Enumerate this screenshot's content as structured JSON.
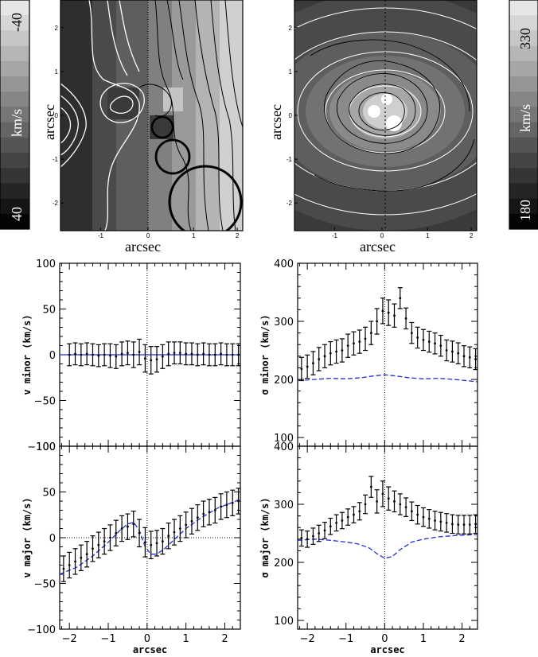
{
  "maps": {
    "left": {
      "xlabel": "arcsec",
      "ylabel": "arcsec",
      "xticks": [
        "-1",
        "0",
        "1",
        "2"
      ],
      "yticks": [
        "2",
        "1",
        "0",
        "-1",
        "-2"
      ]
    },
    "right": {
      "xlabel": "arcsec",
      "ylabel": "arcsec",
      "xticks": [
        "-1",
        "0",
        "1",
        "2"
      ],
      "yticks": [
        "2",
        "1",
        "0",
        "-1",
        "-2"
      ]
    }
  },
  "colorbars": {
    "left": {
      "top": "-40",
      "bottom": "40",
      "unit": "km/s",
      "levels": 15
    },
    "right": {
      "top": "330",
      "bottom": "180",
      "unit": "km/s",
      "levels": 15
    }
  },
  "chart_data": [
    {
      "type": "scatter",
      "name": "v-minor",
      "ylabel": "v  minor  (km/s)",
      "xlabel": "",
      "xlim": [
        -2.25,
        2.4
      ],
      "ylim": [
        -100,
        100
      ],
      "yticks": [
        -100,
        -50,
        0,
        50,
        100
      ],
      "x": [
        -2.0,
        -1.85,
        -1.7,
        -1.55,
        -1.4,
        -1.25,
        -1.1,
        -0.95,
        -0.8,
        -0.65,
        -0.5,
        -0.35,
        -0.2,
        -0.05,
        0.1,
        0.25,
        0.4,
        0.55,
        0.7,
        0.85,
        1.0,
        1.15,
        1.3,
        1.45,
        1.6,
        1.75,
        1.9,
        2.05,
        2.2,
        2.35
      ],
      "y": [
        0,
        1,
        0,
        1,
        0,
        -1,
        0,
        -1,
        -2,
        1,
        2,
        0,
        3,
        -4,
        -6,
        -5,
        -2,
        1,
        2,
        2,
        1,
        1,
        0,
        1,
        0,
        0,
        1,
        0,
        0,
        0
      ],
      "err": [
        12,
        12,
        12,
        12,
        12,
        12,
        12,
        13,
        13,
        13,
        13,
        14,
        14,
        15,
        15,
        14,
        13,
        13,
        12,
        12,
        12,
        12,
        12,
        12,
        12,
        12,
        12,
        12,
        12,
        12
      ],
      "model": {
        "x": [
          -2.25,
          2.4
        ],
        "y": [
          0,
          0
        ]
      }
    },
    {
      "type": "scatter",
      "name": "sigma-minor",
      "ylabel": "σ  minor  (km/s)",
      "xlabel": "",
      "xlim": [
        -2.25,
        2.4
      ],
      "ylim": [
        85,
        400
      ],
      "yticks": [
        100,
        200,
        300,
        400
      ],
      "x": [
        -2.15,
        -2.0,
        -1.85,
        -1.7,
        -1.55,
        -1.4,
        -1.25,
        -1.1,
        -0.95,
        -0.8,
        -0.65,
        -0.5,
        -0.35,
        -0.2,
        -0.05,
        0.1,
        0.25,
        0.4,
        0.55,
        0.7,
        0.85,
        1.0,
        1.15,
        1.3,
        1.45,
        1.6,
        1.75,
        1.9,
        2.05,
        2.2,
        2.35
      ],
      "y": [
        218,
        222,
        228,
        235,
        240,
        245,
        248,
        250,
        258,
        262,
        265,
        270,
        280,
        300,
        318,
        315,
        310,
        340,
        305,
        280,
        272,
        268,
        265,
        262,
        258,
        250,
        248,
        245,
        240,
        238,
        235
      ],
      "err": [
        20,
        20,
        20,
        20,
        20,
        20,
        20,
        20,
        20,
        20,
        20,
        20,
        20,
        22,
        22,
        22,
        20,
        18,
        18,
        18,
        18,
        18,
        18,
        18,
        18,
        18,
        18,
        18,
        18,
        18,
        18
      ],
      "model": {
        "x": [
          -2.25,
          -1.8,
          -1.4,
          -1.0,
          -0.6,
          -0.3,
          0.0,
          0.3,
          0.6,
          1.0,
          1.4,
          1.8,
          2.4
        ],
        "y": [
          198,
          200,
          202,
          201,
          203,
          206,
          208,
          206,
          203,
          201,
          202,
          200,
          196
        ]
      }
    },
    {
      "type": "scatter",
      "name": "v-major",
      "ylabel": "v  major  (km/s)",
      "xlabel": "arcsec",
      "xlim": [
        -2.25,
        2.4
      ],
      "ylim": [
        -100,
        100
      ],
      "yticks": [
        -100,
        -50,
        0,
        50,
        100
      ],
      "xticks": [
        -2,
        -1,
        0,
        1,
        2
      ],
      "x": [
        -2.15,
        -2.0,
        -1.85,
        -1.7,
        -1.55,
        -1.4,
        -1.25,
        -1.1,
        -0.95,
        -0.8,
        -0.65,
        -0.5,
        -0.35,
        -0.2,
        -0.05,
        0.1,
        0.25,
        0.4,
        0.55,
        0.7,
        0.85,
        1.0,
        1.15,
        1.3,
        1.45,
        1.6,
        1.75,
        1.9,
        2.05,
        2.2,
        2.35
      ],
      "y": [
        -34,
        -30,
        -26,
        -22,
        -18,
        -12,
        -8,
        -4,
        0,
        5,
        10,
        12,
        15,
        5,
        -5,
        -8,
        -6,
        -4,
        2,
        6,
        10,
        14,
        18,
        22,
        26,
        28,
        30,
        34,
        36,
        38,
        40
      ],
      "err": [
        14,
        14,
        14,
        14,
        14,
        14,
        14,
        14,
        14,
        14,
        14,
        14,
        14,
        15,
        16,
        15,
        14,
        14,
        14,
        14,
        14,
        14,
        14,
        14,
        14,
        14,
        14,
        14,
        14,
        14,
        14
      ],
      "model": {
        "x": [
          -2.25,
          -1.8,
          -1.4,
          -1.0,
          -0.7,
          -0.5,
          -0.35,
          -0.2,
          -0.05,
          0.1,
          0.25,
          0.45,
          0.7,
          1.0,
          1.4,
          1.8,
          2.4
        ],
        "y": [
          -40,
          -32,
          -20,
          -5,
          8,
          15,
          17,
          8,
          -10,
          -18,
          -18,
          -12,
          -2,
          10,
          22,
          32,
          42
        ]
      }
    },
    {
      "type": "scatter",
      "name": "sigma-major",
      "ylabel": "σ  major  (km/s)",
      "xlabel": "arcsec",
      "xlim": [
        -2.25,
        2.4
      ],
      "ylim": [
        85,
        400
      ],
      "yticks": [
        100,
        200,
        300,
        400
      ],
      "xticks": [
        -2,
        -1,
        0,
        1,
        2
      ],
      "x": [
        -2.15,
        -2.0,
        -1.85,
        -1.7,
        -1.55,
        -1.4,
        -1.25,
        -1.1,
        -0.95,
        -0.8,
        -0.65,
        -0.5,
        -0.35,
        -0.2,
        -0.05,
        0.1,
        0.25,
        0.4,
        0.55,
        0.7,
        0.85,
        1.0,
        1.15,
        1.3,
        1.45,
        1.6,
        1.75,
        1.9,
        2.05,
        2.2,
        2.35
      ],
      "y": [
        242,
        240,
        245,
        250,
        255,
        262,
        268,
        272,
        278,
        282,
        288,
        300,
        330,
        305,
        318,
        310,
        305,
        300,
        295,
        288,
        282,
        278,
        275,
        272,
        270,
        268,
        266,
        265,
        265,
        265,
        266
      ],
      "err": [
        14,
        14,
        14,
        14,
        14,
        14,
        14,
        14,
        14,
        14,
        15,
        16,
        18,
        20,
        22,
        20,
        18,
        18,
        16,
        16,
        16,
        16,
        16,
        16,
        16,
        16,
        16,
        16,
        16,
        16,
        16
      ],
      "model": {
        "x": [
          -2.25,
          -1.8,
          -1.4,
          -1.0,
          -0.7,
          -0.4,
          -0.2,
          0.0,
          0.2,
          0.4,
          0.7,
          1.0,
          1.4,
          1.8,
          2.4
        ],
        "y": [
          238,
          240,
          238,
          235,
          232,
          225,
          215,
          207,
          210,
          222,
          235,
          240,
          244,
          246,
          248
        ]
      }
    }
  ]
}
